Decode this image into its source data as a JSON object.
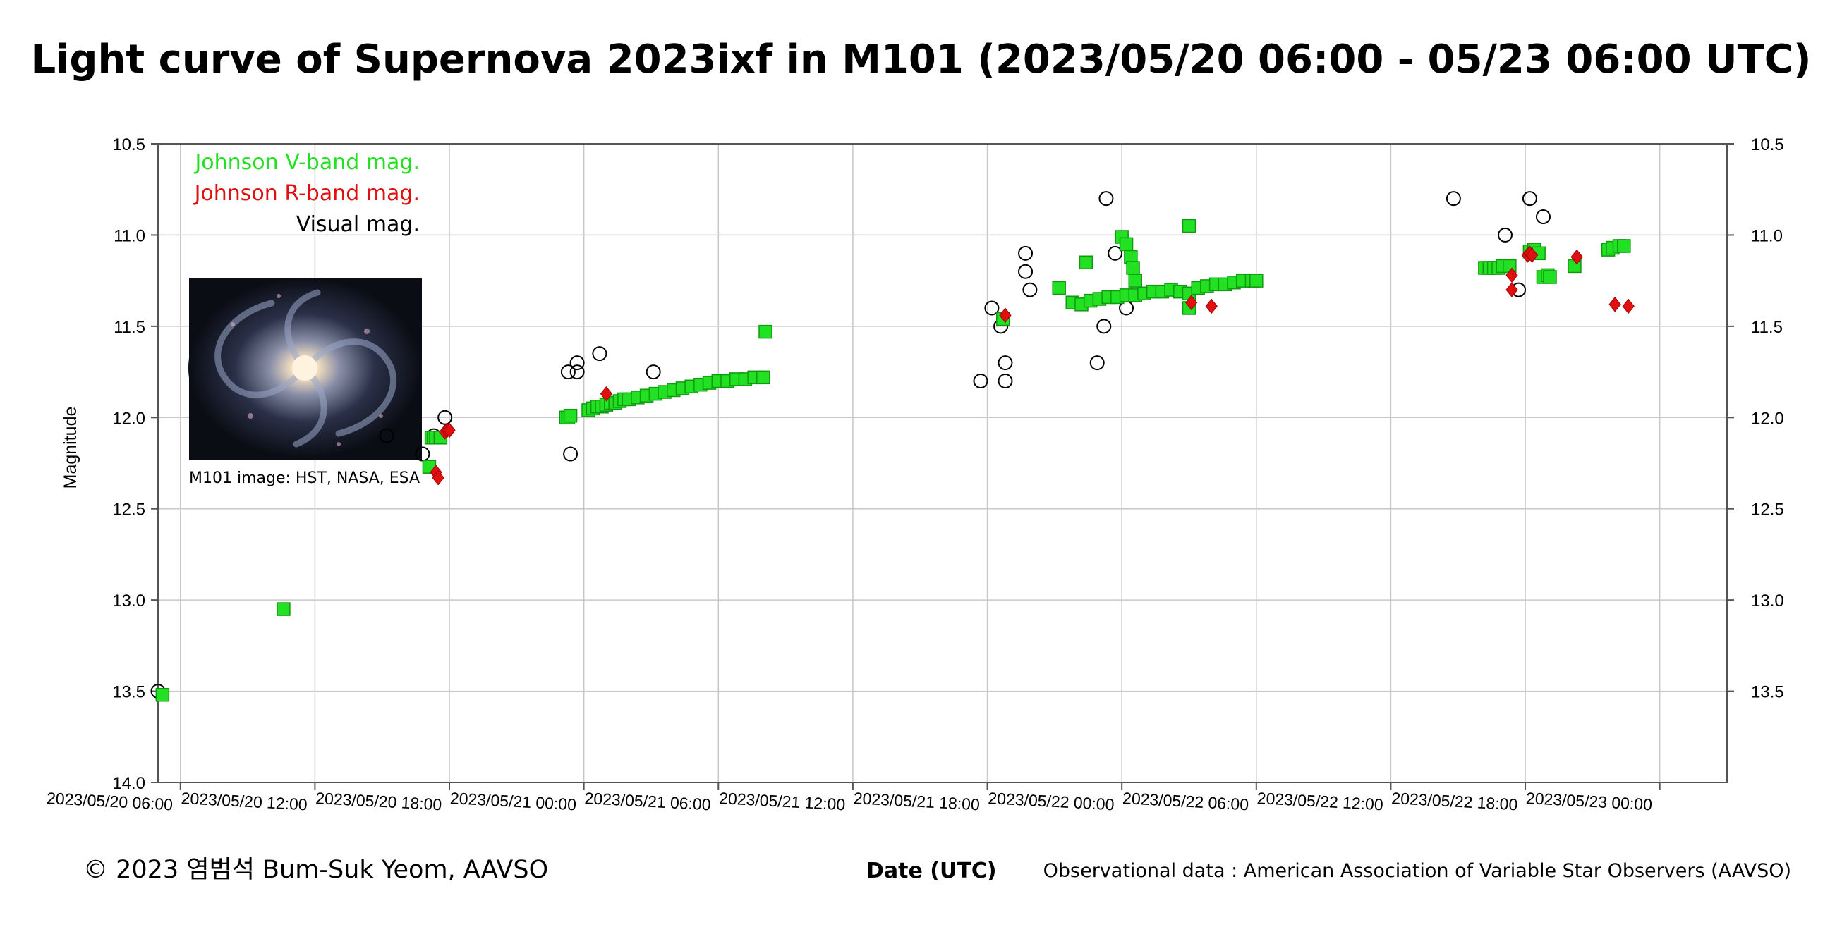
{
  "title": "Light curve of Supernova 2023ixf in M101 (2023/05/20 06:00 - 05/23 06:00 UTC)",
  "footer": {
    "copyright": "© 2023 염범석 Bum-Suk Yeom, AAVSO",
    "xlabel": "Date (UTC)",
    "source": "Observational data : American Association of Variable Star Observers (AAVSO)"
  },
  "inset": {
    "caption": "M101 image: HST, NASA, ESA",
    "icon": "spiral-galaxy-image"
  },
  "chart_data": {
    "type": "scatter",
    "ylabel": "Magnitude",
    "y_inverted": true,
    "ylim": [
      10.5,
      14.0
    ],
    "yticks": [
      10.5,
      11.0,
      11.5,
      12.0,
      12.5,
      13.0,
      13.5,
      14.0
    ],
    "yticks_right": [
      10.5,
      11.0,
      11.5,
      12.0,
      12.5,
      13.0,
      13.5
    ],
    "xlim": [
      "2023-05-20 05:00",
      "2023-05-23 03:00"
    ],
    "xticks": [
      {
        "t": "2023-05-20 06:00",
        "label": "2023/05/20 06:00"
      },
      {
        "t": "2023-05-20 12:00",
        "label": "2023/05/20 12:00"
      },
      {
        "t": "2023-05-20 18:00",
        "label": "2023/05/20 18:00"
      },
      {
        "t": "2023-05-21 00:00",
        "label": "2023/05/21 00:00"
      },
      {
        "t": "2023-05-21 06:00",
        "label": "2023/05/21 06:00"
      },
      {
        "t": "2023-05-21 12:00",
        "label": "2023/05/21 12:00"
      },
      {
        "t": "2023-05-21 18:00",
        "label": "2023/05/21 18:00"
      },
      {
        "t": "2023-05-22 00:00",
        "label": "2023/05/22 00:00"
      },
      {
        "t": "2023-05-22 06:00",
        "label": "2023/05/22 06:00"
      },
      {
        "t": "2023-05-22 12:00",
        "label": "2023/05/22 12:00"
      },
      {
        "t": "2023-05-22 18:00",
        "label": "2023/05/22 18:00"
      },
      {
        "t": "2023-05-23 00:00",
        "label": "2023/05/23 00:00"
      }
    ],
    "grid": true,
    "legend_position": "top-left",
    "colors": {
      "V": "#22e022",
      "V_edge": "#119911",
      "R": "#e01010",
      "Vis": "#000000"
    },
    "series": [
      {
        "name": "Johnson V-band mag.",
        "marker": "square",
        "points": [
          [
            "2023-05-20 05:12",
            13.52
          ],
          [
            "2023-05-20 10:36",
            13.05
          ],
          [
            "2023-05-20 17:12",
            12.11
          ],
          [
            "2023-05-20 17:18",
            12.11
          ],
          [
            "2023-05-20 17:24",
            12.11
          ],
          [
            "2023-05-20 17:36",
            12.11
          ],
          [
            "2023-05-20 17:06",
            12.27
          ],
          [
            "2023-05-20 23:12",
            12.0
          ],
          [
            "2023-05-20 23:18",
            12.0
          ],
          [
            "2023-05-20 23:24",
            11.99
          ],
          [
            "2023-05-21 00:12",
            11.96
          ],
          [
            "2023-05-21 00:24",
            11.95
          ],
          [
            "2023-05-21 00:36",
            11.94
          ],
          [
            "2023-05-21 00:48",
            11.94
          ],
          [
            "2023-05-21 01:00",
            11.93
          ],
          [
            "2023-05-21 01:12",
            11.92
          ],
          [
            "2023-05-21 01:24",
            11.92
          ],
          [
            "2023-05-21 01:36",
            11.91
          ],
          [
            "2023-05-21 01:48",
            11.9
          ],
          [
            "2023-05-21 02:00",
            11.9
          ],
          [
            "2023-05-21 02:24",
            11.89
          ],
          [
            "2023-05-21 02:48",
            11.88
          ],
          [
            "2023-05-21 03:12",
            11.87
          ],
          [
            "2023-05-21 03:36",
            11.86
          ],
          [
            "2023-05-21 04:00",
            11.85
          ],
          [
            "2023-05-21 04:24",
            11.84
          ],
          [
            "2023-05-21 04:48",
            11.83
          ],
          [
            "2023-05-21 05:12",
            11.82
          ],
          [
            "2023-05-21 05:36",
            11.81
          ],
          [
            "2023-05-21 06:00",
            11.8
          ],
          [
            "2023-05-21 06:24",
            11.8
          ],
          [
            "2023-05-21 06:48",
            11.79
          ],
          [
            "2023-05-21 07:12",
            11.79
          ],
          [
            "2023-05-21 07:36",
            11.78
          ],
          [
            "2023-05-21 08:00",
            11.78
          ],
          [
            "2023-05-21 08:06",
            11.53
          ],
          [
            "2023-05-21 18:42",
            11.46
          ],
          [
            "2023-05-21 21:12",
            11.29
          ],
          [
            "2023-05-21 21:48",
            11.37
          ],
          [
            "2023-05-21 22:12",
            11.38
          ],
          [
            "2023-05-21 22:24",
            11.15
          ],
          [
            "2023-05-21 22:36",
            11.36
          ],
          [
            "2023-05-21 23:00",
            11.35
          ],
          [
            "2023-05-21 23:24",
            11.34
          ],
          [
            "2023-05-21 23:48",
            11.34
          ],
          [
            "2023-05-22 00:12",
            11.33
          ],
          [
            "2023-05-22 00:36",
            11.33
          ],
          [
            "2023-05-22 00:00",
            11.01
          ],
          [
            "2023-05-22 00:12",
            11.05
          ],
          [
            "2023-05-22 00:24",
            11.12
          ],
          [
            "2023-05-22 00:30",
            11.18
          ],
          [
            "2023-05-22 00:36",
            11.25
          ],
          [
            "2023-05-22 01:00",
            11.32
          ],
          [
            "2023-05-22 01:24",
            11.31
          ],
          [
            "2023-05-22 01:48",
            11.31
          ],
          [
            "2023-05-22 02:12",
            11.3
          ],
          [
            "2023-05-22 02:36",
            11.31
          ],
          [
            "2023-05-22 03:00",
            11.32
          ],
          [
            "2023-05-22 03:00",
            10.95
          ],
          [
            "2023-05-22 03:00",
            11.4
          ],
          [
            "2023-05-22 03:24",
            11.29
          ],
          [
            "2023-05-22 03:48",
            11.28
          ],
          [
            "2023-05-22 04:12",
            11.27
          ],
          [
            "2023-05-22 04:36",
            11.27
          ],
          [
            "2023-05-22 05:00",
            11.26
          ],
          [
            "2023-05-22 05:24",
            11.25
          ],
          [
            "2023-05-22 05:48",
            11.25
          ],
          [
            "2023-05-22 06:00",
            11.25
          ],
          [
            "2023-05-22 16:12",
            11.18
          ],
          [
            "2023-05-22 16:24",
            11.18
          ],
          [
            "2023-05-22 16:36",
            11.18
          ],
          [
            "2023-05-22 16:48",
            11.18
          ],
          [
            "2023-05-22 17:00",
            11.17
          ],
          [
            "2023-05-22 17:18",
            11.17
          ],
          [
            "2023-05-22 18:12",
            11.09
          ],
          [
            "2023-05-22 18:24",
            11.08
          ],
          [
            "2023-05-22 18:36",
            11.1
          ],
          [
            "2023-05-22 18:48",
            11.23
          ],
          [
            "2023-05-22 19:00",
            11.22
          ],
          [
            "2023-05-22 19:06",
            11.23
          ],
          [
            "2023-05-22 20:12",
            11.17
          ],
          [
            "2023-05-22 21:42",
            11.08
          ],
          [
            "2023-05-22 21:54",
            11.07
          ],
          [
            "2023-05-22 22:12",
            11.06
          ],
          [
            "2023-05-22 22:24",
            11.06
          ]
        ]
      },
      {
        "name": "Johnson R-band mag.",
        "marker": "diamond",
        "points": [
          [
            "2023-05-20 17:24",
            12.3
          ],
          [
            "2023-05-20 17:30",
            12.33
          ],
          [
            "2023-05-20 17:48",
            12.08
          ],
          [
            "2023-05-20 17:54",
            12.07
          ],
          [
            "2023-05-20 18:00",
            12.07
          ],
          [
            "2023-05-21 01:00",
            11.87
          ],
          [
            "2023-05-21 18:48",
            11.44
          ],
          [
            "2023-05-22 22:00",
            11.38
          ],
          [
            "2023-05-22 22:36",
            11.39
          ],
          [
            "2023-05-22 03:06",
            11.37
          ],
          [
            "2023-05-22 04:00",
            11.39
          ],
          [
            "2023-05-22 17:24",
            11.22
          ],
          [
            "2023-05-22 17:24",
            11.3
          ],
          [
            "2023-05-22 18:06",
            11.11
          ],
          [
            "2023-05-22 18:12",
            11.1
          ],
          [
            "2023-05-22 18:18",
            11.11
          ],
          [
            "2023-05-22 20:18",
            11.12
          ]
        ]
      },
      {
        "name": "Visual mag.",
        "marker": "circle",
        "points": [
          [
            "2023-05-20 05:00",
            13.5
          ],
          [
            "2023-05-20 15:12",
            12.1
          ],
          [
            "2023-05-20 16:48",
            12.2
          ],
          [
            "2023-05-20 17:18",
            12.1
          ],
          [
            "2023-05-20 17:48",
            12.0
          ],
          [
            "2023-05-20 23:18",
            11.75
          ],
          [
            "2023-05-20 23:42",
            11.7
          ],
          [
            "2023-05-20 23:42",
            11.75
          ],
          [
            "2023-05-20 23:24",
            12.2
          ],
          [
            "2023-05-21 00:42",
            11.65
          ],
          [
            "2023-05-21 03:06",
            11.75
          ],
          [
            "2023-05-21 17:42",
            11.8
          ],
          [
            "2023-05-21 18:12",
            11.4
          ],
          [
            "2023-05-21 18:36",
            11.5
          ],
          [
            "2023-05-21 18:48",
            11.7
          ],
          [
            "2023-05-21 18:48",
            11.8
          ],
          [
            "2023-05-21 19:42",
            11.1
          ],
          [
            "2023-05-21 19:42",
            11.2
          ],
          [
            "2023-05-21 19:54",
            11.3
          ],
          [
            "2023-05-21 23:18",
            10.8
          ],
          [
            "2023-05-21 23:42",
            11.1
          ],
          [
            "2023-05-21 22:54",
            11.7
          ],
          [
            "2023-05-21 23:12",
            11.5
          ],
          [
            "2023-05-22 00:12",
            11.4
          ],
          [
            "2023-05-22 14:48",
            10.8
          ],
          [
            "2023-05-22 17:06",
            11.0
          ],
          [
            "2023-05-22 17:42",
            11.3
          ],
          [
            "2023-05-22 18:12",
            10.8
          ],
          [
            "2023-05-22 18:48",
            10.9
          ]
        ]
      }
    ]
  }
}
